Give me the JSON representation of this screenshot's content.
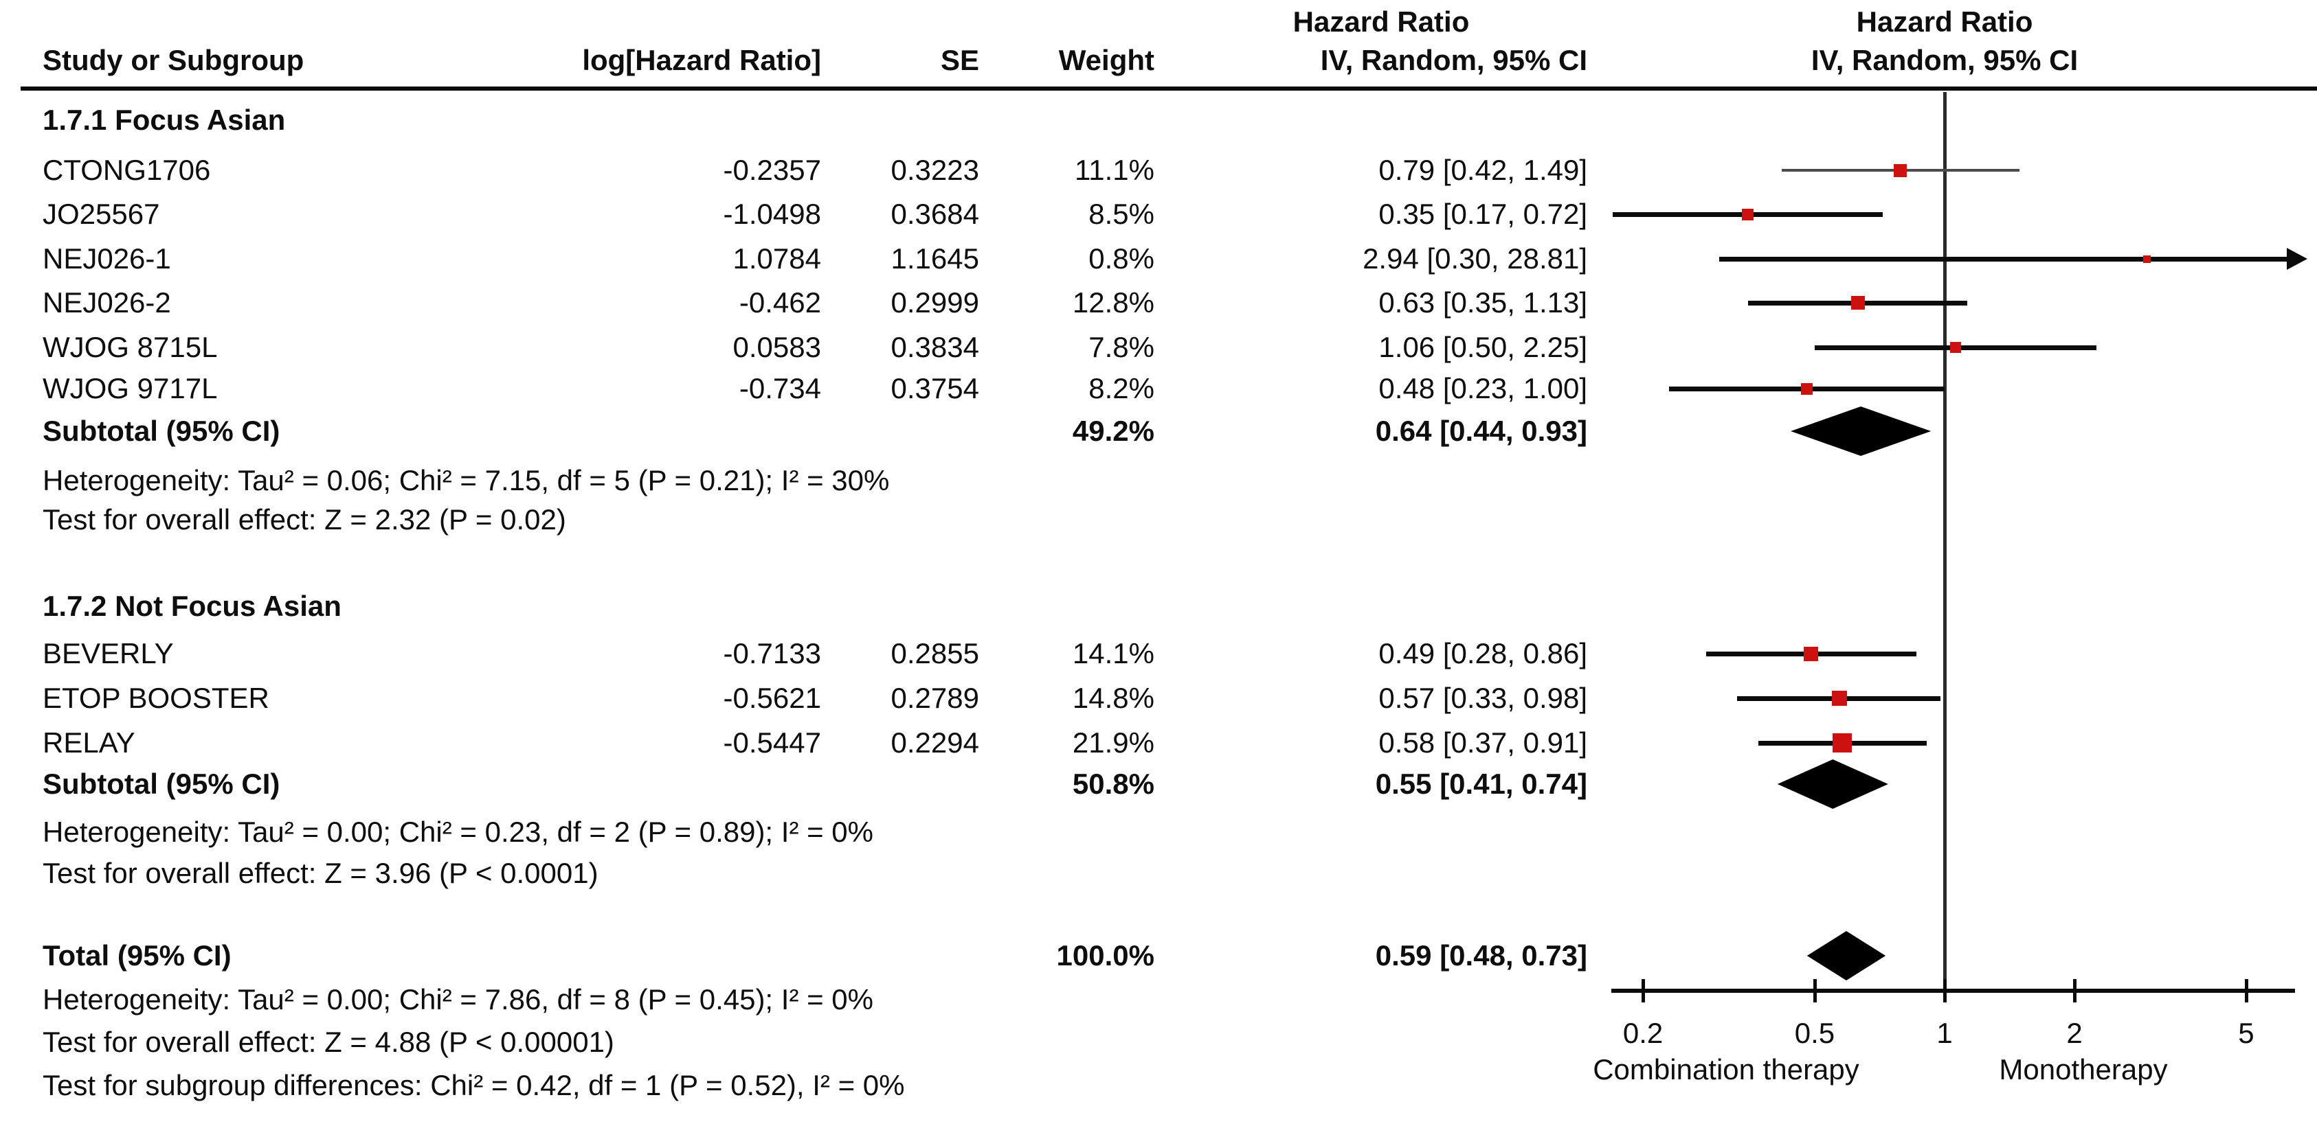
{
  "accent_color": "#CC1111",
  "header": {
    "hazard_ratio_line": "Hazard Ratio",
    "method_line": "IV, Random, 95% CI",
    "columns": {
      "study": "Study or Subgroup",
      "log_hr": "log[Hazard Ratio]",
      "se": "SE",
      "weight": "Weight",
      "ci": "IV, Random, 95% CI"
    }
  },
  "chart_data": {
    "type": "forest",
    "x_scale": "log",
    "null_line": 1,
    "axis_ticks": [
      0.2,
      0.5,
      1,
      2,
      5
    ],
    "axis_tick_labels": [
      "0.2",
      "0.5",
      "1",
      "2",
      "5"
    ],
    "axis_caption_left": "Combination therapy",
    "axis_caption_right": "Monotherapy",
    "legend_position": "none",
    "groups": [
      {
        "name": "1.7.1 Focus Asian",
        "studies": [
          {
            "name": "CTONG1706",
            "log_hr": "-0.2357",
            "se": "0.3223",
            "weight": "11.1%",
            "weight_pct": 11.1,
            "ci_text": "0.79 [0.42, 1.49]",
            "hr": 0.79,
            "lo": 0.42,
            "hi": 1.49,
            "line_style": "thin"
          },
          {
            "name": "JO25567",
            "log_hr": "-1.0498",
            "se": "0.3684",
            "weight": "8.5%",
            "weight_pct": 8.5,
            "ci_text": "0.35 [0.17, 0.72]",
            "hr": 0.35,
            "lo": 0.17,
            "hi": 0.72,
            "line_style": "normal"
          },
          {
            "name": "NEJ026-1",
            "log_hr": "1.0784",
            "se": "1.1645",
            "weight": "0.8%",
            "weight_pct": 0.8,
            "ci_text": "2.94 [0.30, 28.81]",
            "hr": 2.94,
            "lo": 0.3,
            "hi": 28.81,
            "line_style": "normal"
          },
          {
            "name": "NEJ026-2",
            "log_hr": "-0.462",
            "se": "0.2999",
            "weight": "12.8%",
            "weight_pct": 12.8,
            "ci_text": "0.63 [0.35, 1.13]",
            "hr": 0.63,
            "lo": 0.35,
            "hi": 1.13,
            "line_style": "normal"
          },
          {
            "name": "WJOG 8715L",
            "log_hr": "0.0583",
            "se": "0.3834",
            "weight": "7.8%",
            "weight_pct": 7.8,
            "ci_text": "1.06 [0.50, 2.25]",
            "hr": 1.06,
            "lo": 0.5,
            "hi": 2.25,
            "line_style": "normal"
          },
          {
            "name": "WJOG 9717L",
            "log_hr": "-0.734",
            "se": "0.3754",
            "weight": "8.2%",
            "weight_pct": 8.2,
            "ci_text": "0.48 [0.23, 1.00]",
            "hr": 0.48,
            "lo": 0.23,
            "hi": 1.0,
            "line_style": "normal"
          }
        ],
        "subtotal": {
          "label": "Subtotal (95% CI)",
          "weight": "49.2%",
          "ci_text": "0.64 [0.44, 0.93]",
          "hr": 0.64,
          "lo": 0.44,
          "hi": 0.93
        },
        "heterogeneity": "Heterogeneity: Tau² = 0.06; Chi² = 7.15, df = 5 (P = 0.21); I² = 30%",
        "overall_effect": "Test for overall effect: Z = 2.32 (P = 0.02)"
      },
      {
        "name": "1.7.2 Not Focus Asian",
        "studies": [
          {
            "name": "BEVERLY",
            "log_hr": "-0.7133",
            "se": "0.2855",
            "weight": "14.1%",
            "weight_pct": 14.1,
            "ci_text": "0.49 [0.28, 0.86]",
            "hr": 0.49,
            "lo": 0.28,
            "hi": 0.86,
            "line_style": "normal"
          },
          {
            "name": "ETOP BOOSTER",
            "log_hr": "-0.5621",
            "se": "0.2789",
            "weight": "14.8%",
            "weight_pct": 14.8,
            "ci_text": "0.57 [0.33, 0.98]",
            "hr": 0.57,
            "lo": 0.33,
            "hi": 0.98,
            "line_style": "normal"
          },
          {
            "name": "RELAY",
            "log_hr": "-0.5447",
            "se": "0.2294",
            "weight": "21.9%",
            "weight_pct": 21.9,
            "ci_text": "0.58 [0.37, 0.91]",
            "hr": 0.58,
            "lo": 0.37,
            "hi": 0.91,
            "line_style": "normal"
          }
        ],
        "subtotal": {
          "label": "Subtotal (95% CI)",
          "weight": "50.8%",
          "ci_text": "0.55 [0.41, 0.74]",
          "hr": 0.55,
          "lo": 0.41,
          "hi": 0.74
        },
        "heterogeneity": "Heterogeneity: Tau² = 0.00; Chi² = 0.23, df = 2 (P = 0.89); I² = 0%",
        "overall_effect": "Test for overall effect: Z = 3.96 (P < 0.0001)"
      }
    ],
    "total": {
      "label": "Total (95% CI)",
      "weight": "100.0%",
      "ci_text": "0.59 [0.48, 0.73]",
      "hr": 0.59,
      "lo": 0.48,
      "hi": 0.73
    },
    "total_heterogeneity": "Heterogeneity: Tau² = 0.00; Chi² = 7.86, df = 8 (P = 0.45); I² = 0%",
    "total_overall_effect": "Test for overall effect: Z = 4.88 (P < 0.00001)",
    "subgroup_differences": "Test for subgroup differences: Chi² = 0.42, df = 1 (P = 0.52), I² = 0%"
  }
}
